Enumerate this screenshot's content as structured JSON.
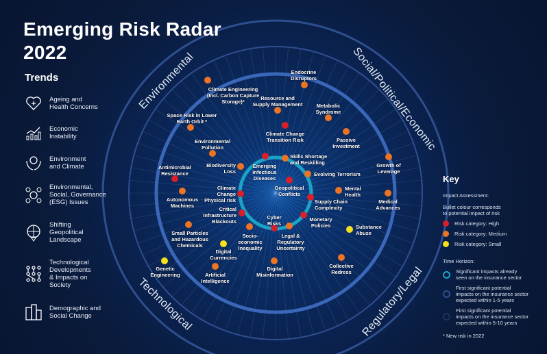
{
  "title": "Emerging Risk Radar\n2022",
  "trends": {
    "heading": "Trends",
    "items": [
      {
        "label": "Ageing and\nHealth Concerns",
        "icon": "heart-plus-icon"
      },
      {
        "label": "Economic\nInstability",
        "icon": "chart-growth-icon"
      },
      {
        "label": "Environment\nand Climate",
        "icon": "globe-hands-icon"
      },
      {
        "label": "Environmental,\nSocial, Governance\n(ESG) Issues",
        "icon": "esg-network-icon"
      },
      {
        "label": "Shifting\nGeopolitical\nLandscape",
        "icon": "globe-pin-icon"
      },
      {
        "label": "Technological\nDevelopments\n& Impacts on\nSociety",
        "icon": "circuit-icon"
      },
      {
        "label": "Demographic and\nSocial Change",
        "icon": "buildings-icon"
      }
    ]
  },
  "categories": {
    "environmental": "Environmental",
    "social": "Social/Political/Economic",
    "technological": "Technological",
    "regulatory": "Regulatory/Legal"
  },
  "colors": {
    "high": "#d81f2a",
    "medium": "#ec7422",
    "small": "#f5e11c",
    "inner_ring": "#1aa3c6",
    "middle_ring": "#3a67b8",
    "outer_ring": "#2e4f8f"
  },
  "risks": [
    {
      "label": "Climate Engineering\n(Incl. Carbon Capture\nStorage)*",
      "level": "medium"
    },
    {
      "label": "Endocrine\nDisruptors",
      "level": "medium"
    },
    {
      "label": "Resource and\nSupply Management",
      "level": "medium"
    },
    {
      "label": "Metabolic\nSyndrome",
      "level": "medium"
    },
    {
      "label": "Space Risk in Lower\nEarth Orbit *",
      "level": "medium"
    },
    {
      "label": "Climate Change\nTransition Risk",
      "level": "high"
    },
    {
      "label": "Passive\nInvestment",
      "level": "medium"
    },
    {
      "label": "Environmental\nPollution",
      "level": "medium"
    },
    {
      "label": "Biodiversity\nLoss",
      "level": "medium"
    },
    {
      "label": "Antimicrobial\nResistance",
      "level": "high"
    },
    {
      "label": "Emerging\nInfectious\nDiseases",
      "level": "high"
    },
    {
      "label": "Skills Shortage\nand Reskilling",
      "level": "medium"
    },
    {
      "label": "Evolving Terrorism",
      "level": "medium"
    },
    {
      "label": "Growth of\nLeverage",
      "level": "medium"
    },
    {
      "label": "Autonomous\nMachines",
      "level": "medium"
    },
    {
      "label": "Climate\nChange\nPhysical risk",
      "level": "high"
    },
    {
      "label": "Geopolitical\nConflicts",
      "level": "high"
    },
    {
      "label": "Mental\nHealth",
      "level": "medium"
    },
    {
      "label": "Medical\nAdvances",
      "level": "medium"
    },
    {
      "label": "Supply Chain\nComplexity",
      "level": "high"
    },
    {
      "label": "Critical\nInfrastructure\nBlackouts",
      "level": "high"
    },
    {
      "label": "Cyber\nRisks",
      "level": "high"
    },
    {
      "label": "Monetary\nPolicies",
      "level": "high"
    },
    {
      "label": "Small Particles\nand Hazardous\nChemicals",
      "level": "medium"
    },
    {
      "label": "Socio-\neconomic\nInequality",
      "level": "medium"
    },
    {
      "label": "Legal &\nRegulatory\nUncertainty",
      "level": "medium"
    },
    {
      "label": "Substance\nAbuse",
      "level": "small"
    },
    {
      "label": "Digital\nCurrencies",
      "level": "small"
    },
    {
      "label": "Genetic\nEngineering",
      "level": "small"
    },
    {
      "label": "Artificial\nIntelligence",
      "level": "medium"
    },
    {
      "label": "Digital\nMisinformation",
      "level": "medium"
    },
    {
      "label": "Collective\nRedress",
      "level": "medium"
    }
  ],
  "key": {
    "heading": "Key",
    "impact_heading": "Impact Assessment:",
    "impact_desc": "Bullet colour corresponds\nto potential impact of risk",
    "high": "Risk category: High",
    "medium": "Risk category: Medium",
    "small": "Risk category: Small",
    "horizon_heading": "Time Horizon:",
    "h1": "Significant impacts already\nseen on the insurance sector",
    "h2": "First significant potential\nimpacts on the insurance sector\nexpected within 1-5 years",
    "h3": "First significant potential\nimpacts on the insurance sector\nexpected within 5-10 years",
    "note": "* New risk in 2022"
  }
}
